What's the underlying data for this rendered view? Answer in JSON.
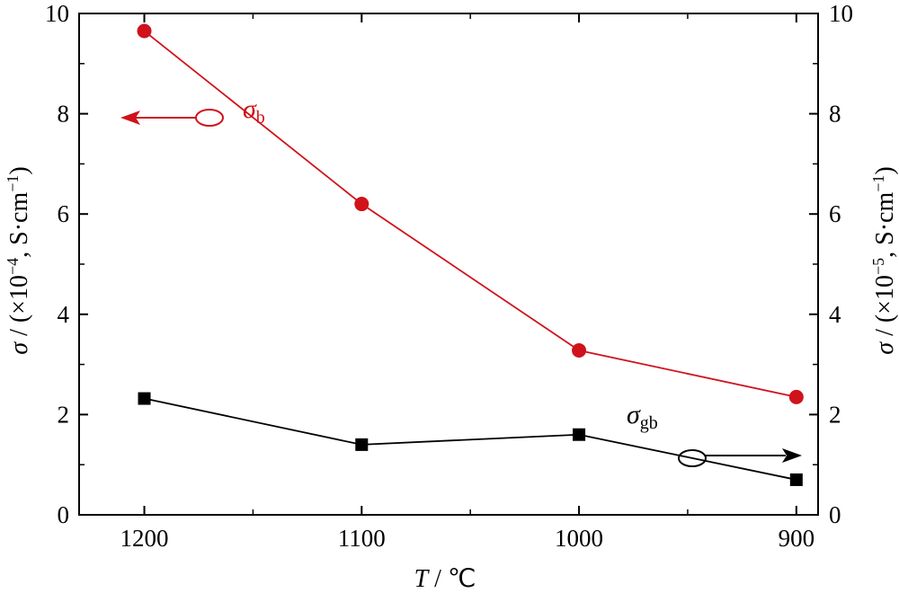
{
  "chart_data": {
    "type": "line",
    "x": [
      1200,
      1100,
      1000,
      900
    ],
    "xlim": [
      1230,
      890
    ],
    "xticks": [
      "1200",
      "1100",
      "1000",
      "900"
    ],
    "xlabel_var": "T",
    "xlabel_rest": " / ℃",
    "ylim_left": [
      0,
      10
    ],
    "ylim_right": [
      0,
      10
    ],
    "yticks_left": [
      "0",
      "2",
      "4",
      "6",
      "8",
      "10"
    ],
    "yticks_right": [
      "0",
      "2",
      "4",
      "6",
      "8",
      "10"
    ],
    "ylabel_left_var": "σ",
    "ylabel_left_rest": " / (×10",
    "ylabel_left_exp": "−4",
    "ylabel_left_tail": ", S·cm",
    "ylabel_left_exp2": "−1",
    "ylabel_left_close": ")",
    "ylabel_right_var": "σ",
    "ylabel_right_rest": " / (×10",
    "ylabel_right_exp": "−5",
    "ylabel_right_tail": ", S·cm",
    "ylabel_right_exp2": "−1",
    "ylabel_right_close": ")",
    "series": [
      {
        "name": "σb",
        "label_main": "σ",
        "label_sub": "b",
        "axis": "left",
        "color": "#d0121b",
        "marker": "circle",
        "values": [
          9.65,
          6.2,
          3.28,
          2.35
        ]
      },
      {
        "name": "σgb",
        "label_main": "σ",
        "label_sub": "gb",
        "axis": "right",
        "color": "#000000",
        "marker": "square",
        "values": [
          2.32,
          1.4,
          1.6,
          0.7
        ]
      }
    ],
    "grid": false,
    "legend": "none"
  }
}
